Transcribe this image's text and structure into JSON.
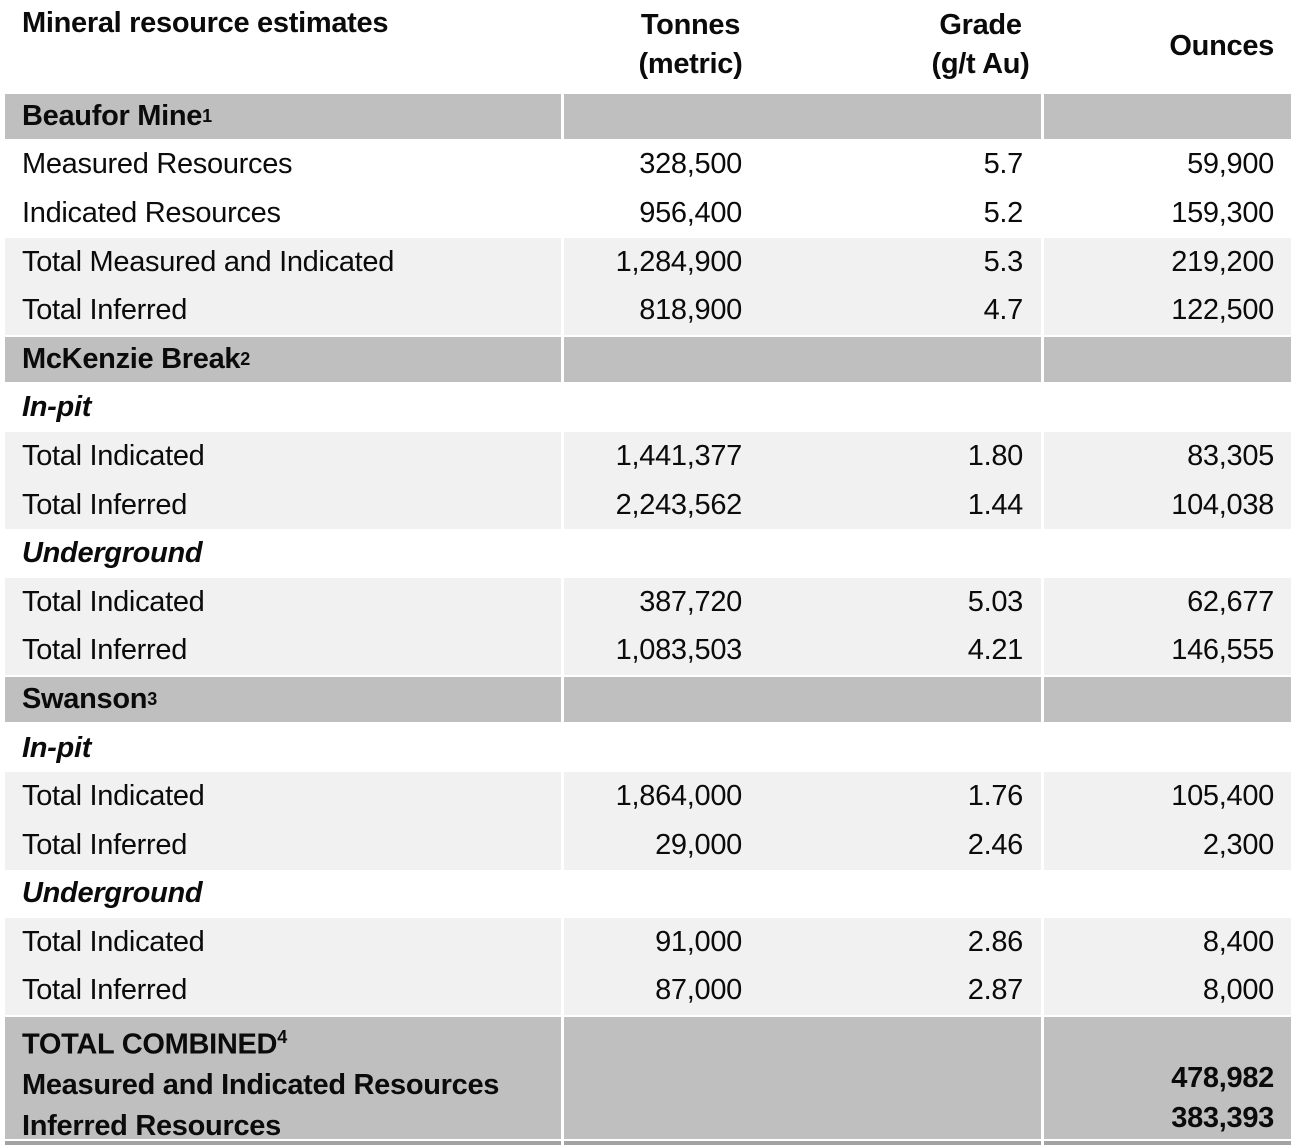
{
  "title": "Mineral resource estimates",
  "columns": {
    "tonnes_line1": "Tonnes",
    "tonnes_line2": "(metric)",
    "grade_line1": "Grade",
    "grade_line2": "(g/t Au)",
    "ounces": "Ounces"
  },
  "sections": [
    {
      "name": "Beaufor Mine",
      "sup": "1",
      "rows": [
        {
          "label": "Measured Resources",
          "tonnes": "328,500",
          "grade": "5.7",
          "ounces": "59,900"
        },
        {
          "label": "Indicated Resources",
          "tonnes": "956,400",
          "grade": "5.2",
          "ounces": "159,300"
        },
        {
          "label": "Total Measured and Indicated",
          "tonnes": "1,284,900",
          "grade": "5.3",
          "ounces": "219,200"
        },
        {
          "label": "Total Inferred",
          "tonnes": "818,900",
          "grade": "4.7",
          "ounces": "122,500"
        }
      ]
    },
    {
      "name": "McKenzie Break",
      "sup": "2",
      "rows": [
        {
          "label": "In-pit"
        },
        {
          "label": "Total Indicated",
          "tonnes": "1,441,377",
          "grade": "1.80",
          "ounces": "83,305"
        },
        {
          "label": "Total Inferred",
          "tonnes": "2,243,562",
          "grade": "1.44",
          "ounces": "104,038"
        },
        {
          "label": "Underground"
        },
        {
          "label": "Total Indicated",
          "tonnes": "387,720",
          "grade": "5.03",
          "ounces": "62,677"
        },
        {
          "label": "Total Inferred",
          "tonnes": "1,083,503",
          "grade": "4.21",
          "ounces": "146,555"
        }
      ]
    },
    {
      "name": "Swanson",
      "sup": "3",
      "rows": [
        {
          "label": "In-pit"
        },
        {
          "label": "Total Indicated",
          "tonnes": "1,864,000",
          "grade": "1.76",
          "ounces": "105,400"
        },
        {
          "label": "Total Inferred",
          "tonnes": "29,000",
          "grade": "2.46",
          "ounces": "2,300"
        },
        {
          "label": "Underground"
        },
        {
          "label": "Total Indicated",
          "tonnes": "91,000",
          "grade": "2.86",
          "ounces": "8,400"
        },
        {
          "label": "Total Inferred",
          "tonnes": "87,000",
          "grade": "2.87",
          "ounces": "8,000"
        }
      ]
    }
  ],
  "total": {
    "name": "TOTAL COMBINED",
    "sup": "4",
    "lines": [
      {
        "label": "Measured and Indicated Resources",
        "ounces": "478,982"
      },
      {
        "label": "Inferred Resources",
        "ounces": "383,393"
      }
    ]
  },
  "colors": {
    "section_band": "#bfbfbf",
    "shaded_row": "#f1f1f1",
    "bottom_rule": "#a3a3a3"
  }
}
